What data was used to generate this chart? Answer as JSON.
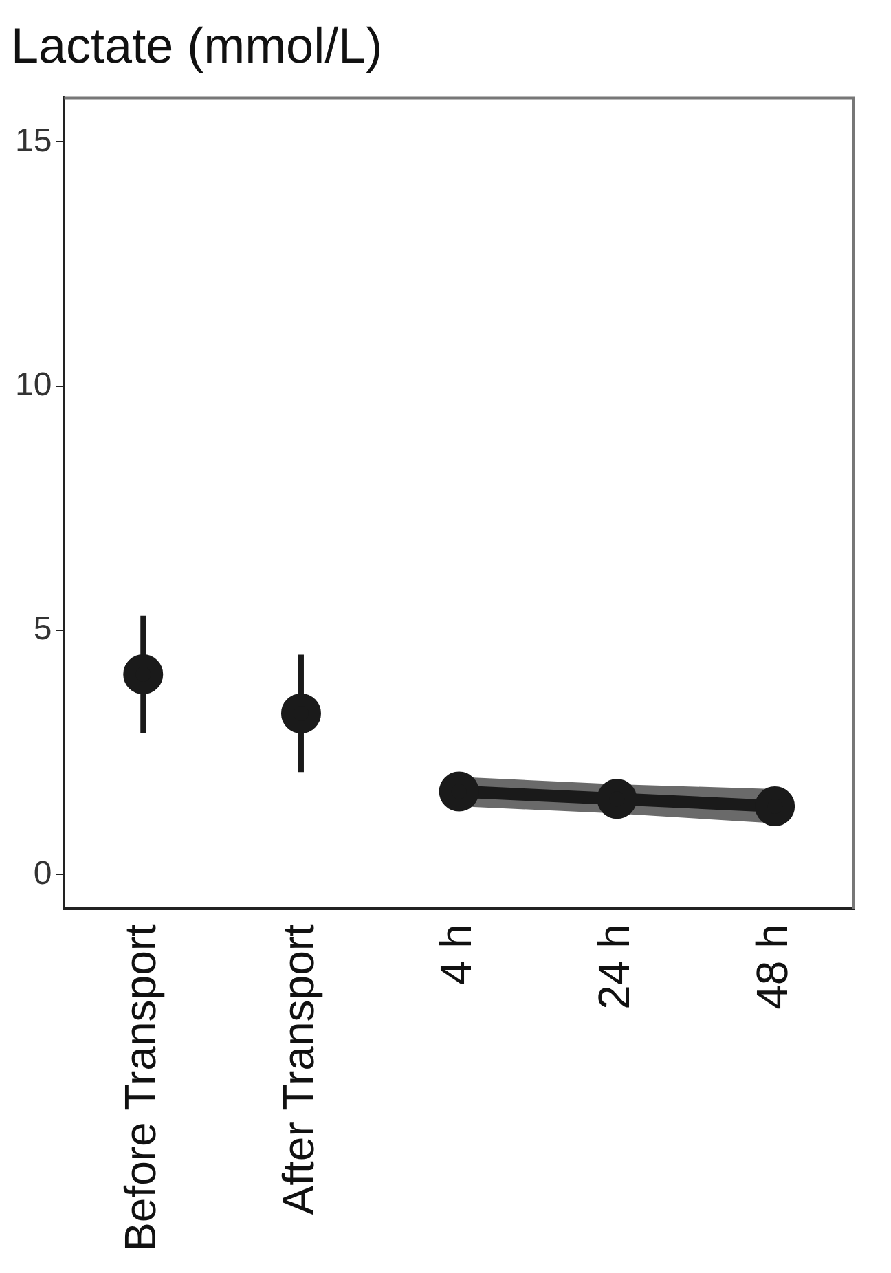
{
  "chart_data": {
    "type": "line",
    "title": "Lactate (mmol/L)",
    "categories": [
      "Before Transport",
      "After Transport",
      "4 h",
      "24 h",
      "48 h"
    ],
    "series": [
      {
        "type": "scatter",
        "color": "#1a1a1a",
        "values": [
          4.1,
          3.3,
          null,
          null,
          null
        ],
        "errors": [
          [
            2.9,
            5.3
          ],
          [
            2.1,
            4.5
          ],
          null,
          null,
          null
        ]
      },
      {
        "color": "#1a1a1a",
        "values": [
          null,
          null,
          1.7,
          1.55,
          1.4
        ],
        "lower": [
          null,
          null,
          1.4,
          1.25,
          1.05
        ],
        "upper": [
          null,
          null,
          2.0,
          1.85,
          1.75
        ]
      }
    ],
    "ylim": [
      -0.7,
      15.9
    ],
    "yticks": [
      0,
      5,
      10,
      15
    ],
    "grid": false,
    "legend": false,
    "marker": "circle",
    "line_style": "solid"
  }
}
